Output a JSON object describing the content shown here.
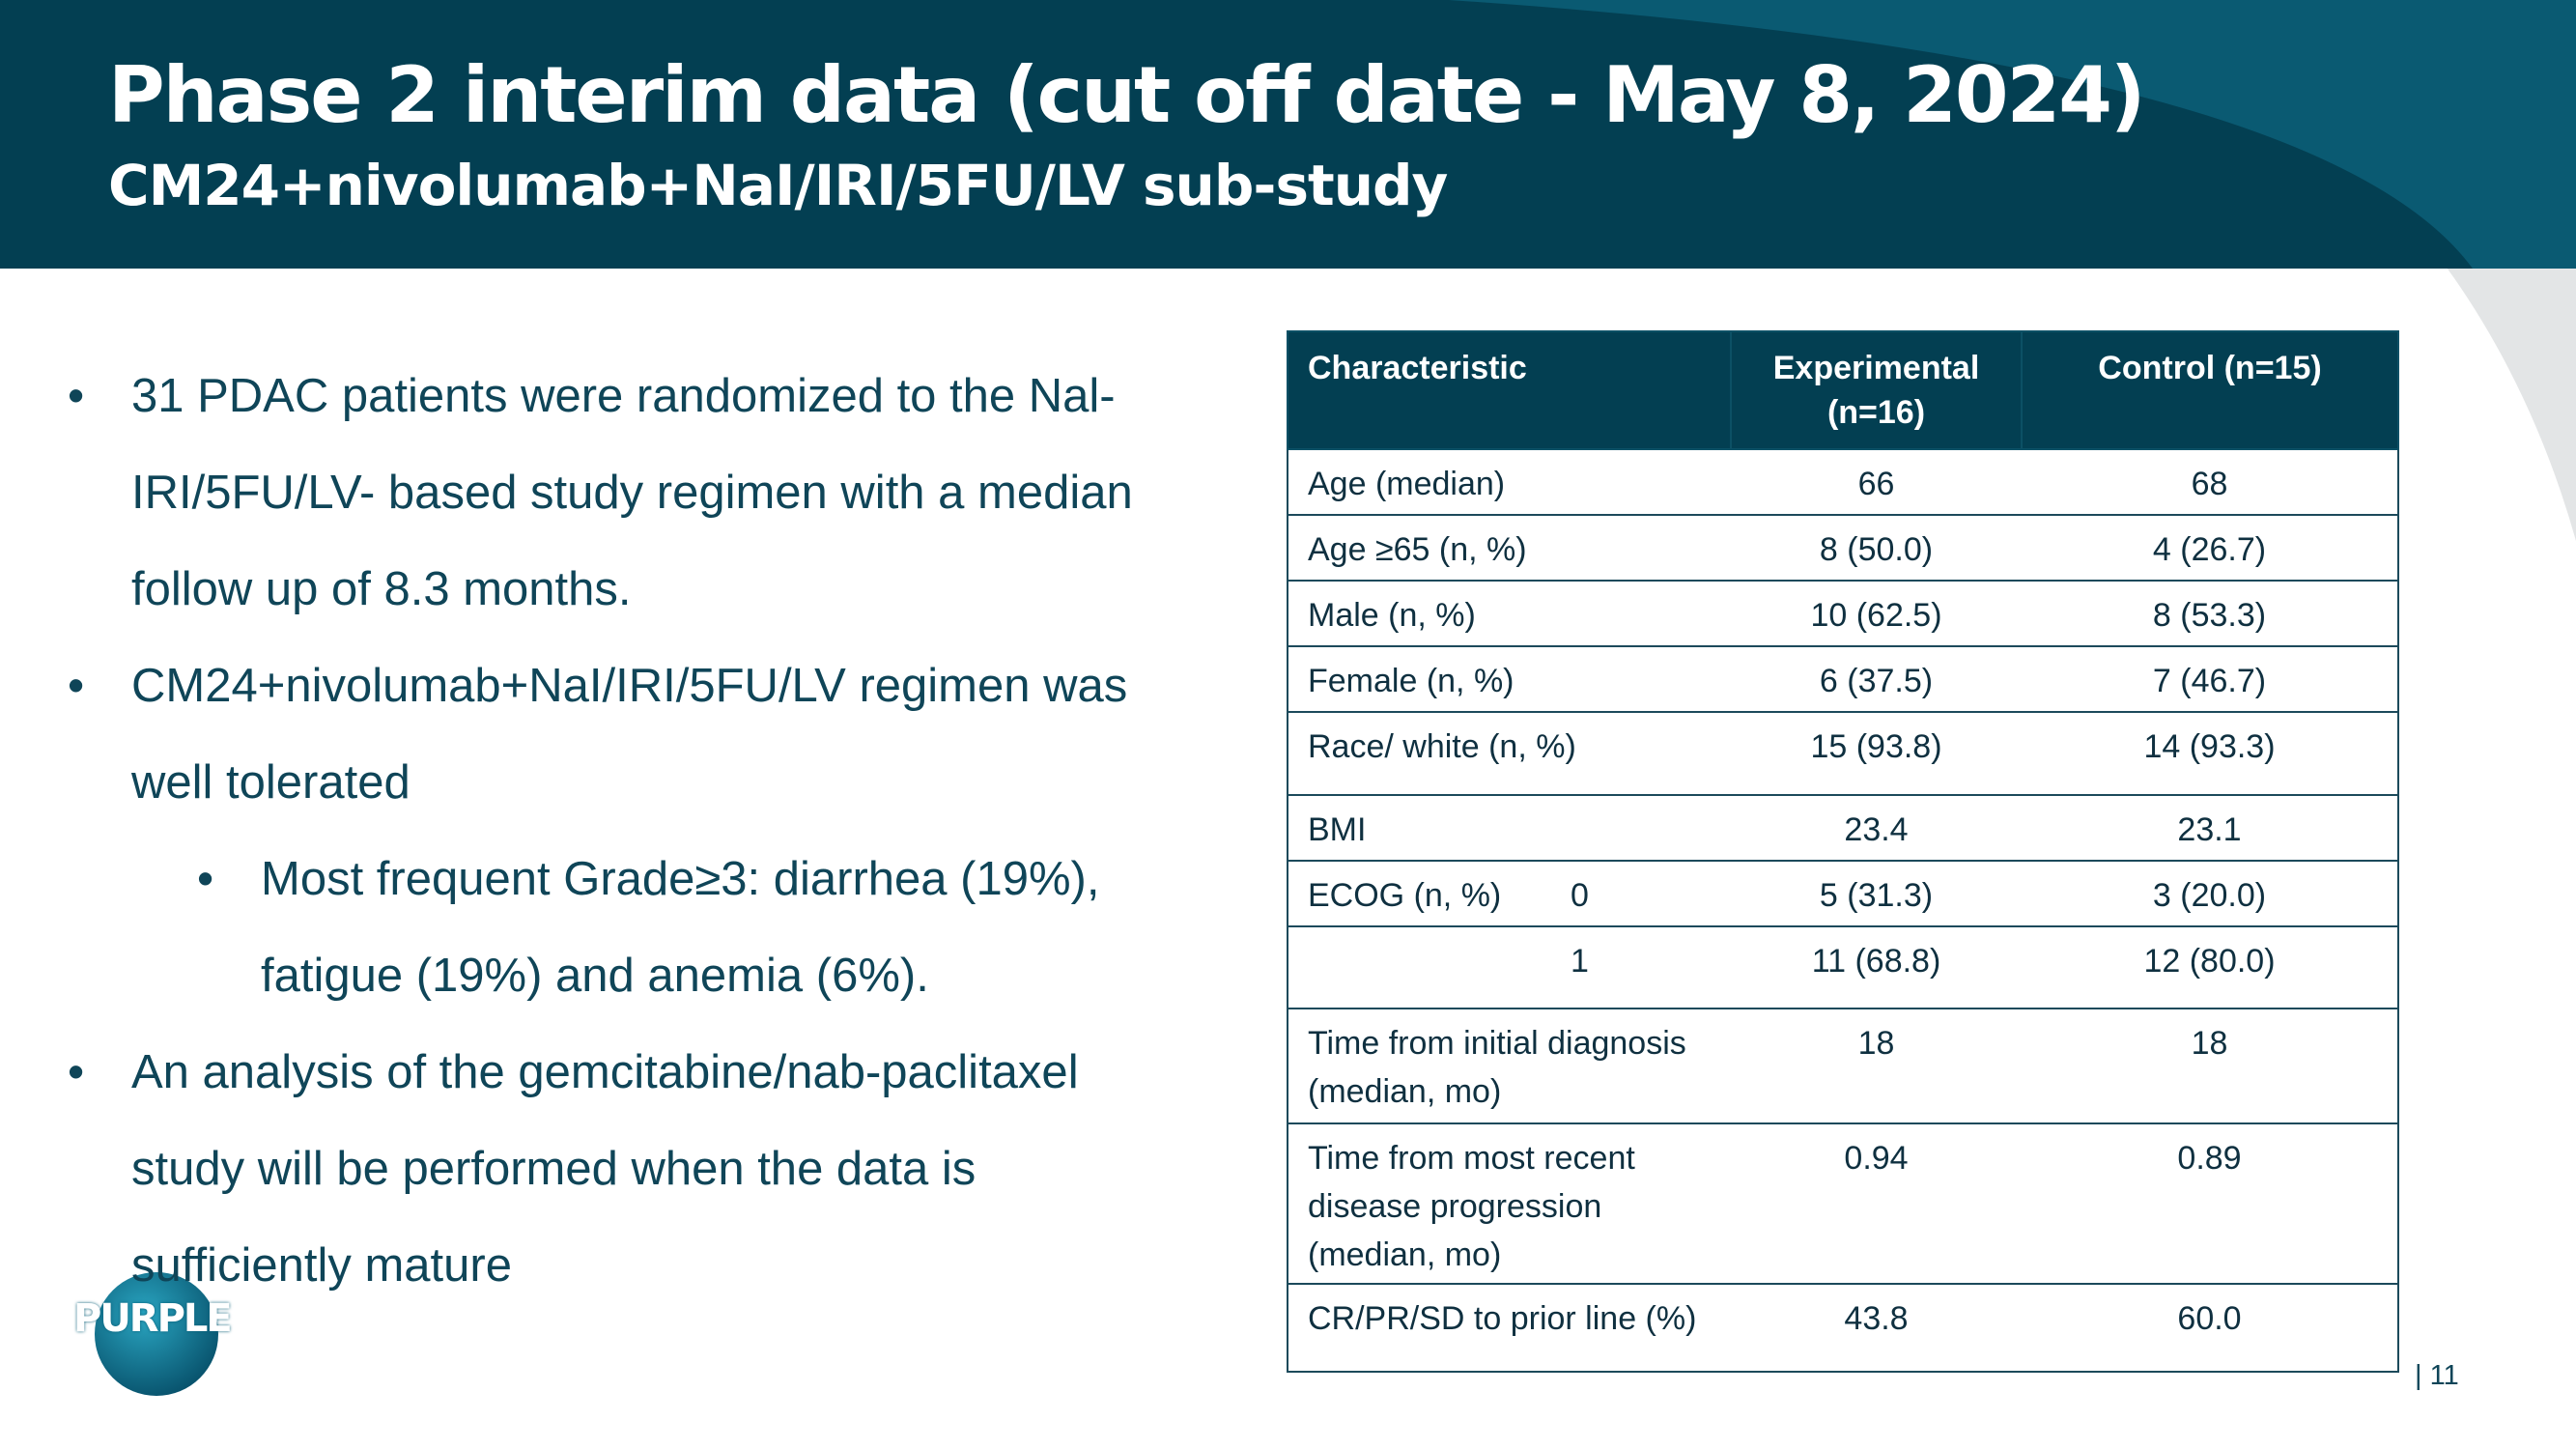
{
  "header": {
    "title": "Phase 2 interim data (cut off date - May 8, 2024)",
    "subtitle": "CM24+nivolumab+NaI/IRI/5FU/LV sub-study"
  },
  "bullets": [
    {
      "level": 0,
      "text": "31 PDAC patients were randomized to the Nal-IRI/5FU/LV- based study regimen with a median follow up of 8.3 months."
    },
    {
      "level": 0,
      "text": "CM24+nivolumab+NaI/IRI/5FU/LV regimen was well tolerated"
    },
    {
      "level": 1,
      "text": "Most frequent Grade≥3: diarrhea (19%), fatigue (19%) and anemia (6%)."
    },
    {
      "level": 0,
      "text": "An analysis of the gemcitabine/nab-paclitaxel study will be performed when the data is sufficiently mature"
    }
  ],
  "table": {
    "headers": [
      "Characteristic",
      "Experimental (n=16)",
      "Control (n=15)"
    ],
    "rows": [
      {
        "label": "Age (median)",
        "cells": [
          "66",
          "68"
        ]
      },
      {
        "label": "Age ≥65 (n, %)",
        "cells": [
          "8 (50.0)",
          "4 (26.7)"
        ]
      },
      {
        "label": "Male  (n, %)",
        "cells": [
          "10 (62.5)",
          "8 (53.3)"
        ]
      },
      {
        "label": "Female (n, %)",
        "cells": [
          "6 (37.5)",
          "7 (46.7)"
        ]
      },
      {
        "label": "Race/ white (n, %)",
        "cells": [
          "15 (93.8)",
          "14 (93.3)"
        ]
      },
      {
        "label": "BMI",
        "cells": [
          "23.4",
          "23.1"
        ]
      },
      {
        "label": "ECOG (n, %)",
        "level": "0",
        "cells": [
          "5 (31.3)",
          "3 (20.0)"
        ]
      },
      {
        "level": "1",
        "cells": [
          "11 (68.8)",
          "12 (80.0)"
        ]
      },
      {
        "label": "Time from initial diagnosis (median, mo)",
        "cells": [
          "18",
          "18"
        ]
      },
      {
        "label": "Time from most recent disease progression (median, mo)",
        "cells": [
          "0.94",
          "0.89"
        ]
      },
      {
        "label": "CR/PR/SD to prior line (%)",
        "cells": [
          "43.8",
          "60.0"
        ]
      }
    ]
  },
  "logo": "PURPLE",
  "page_number": "| 11"
}
